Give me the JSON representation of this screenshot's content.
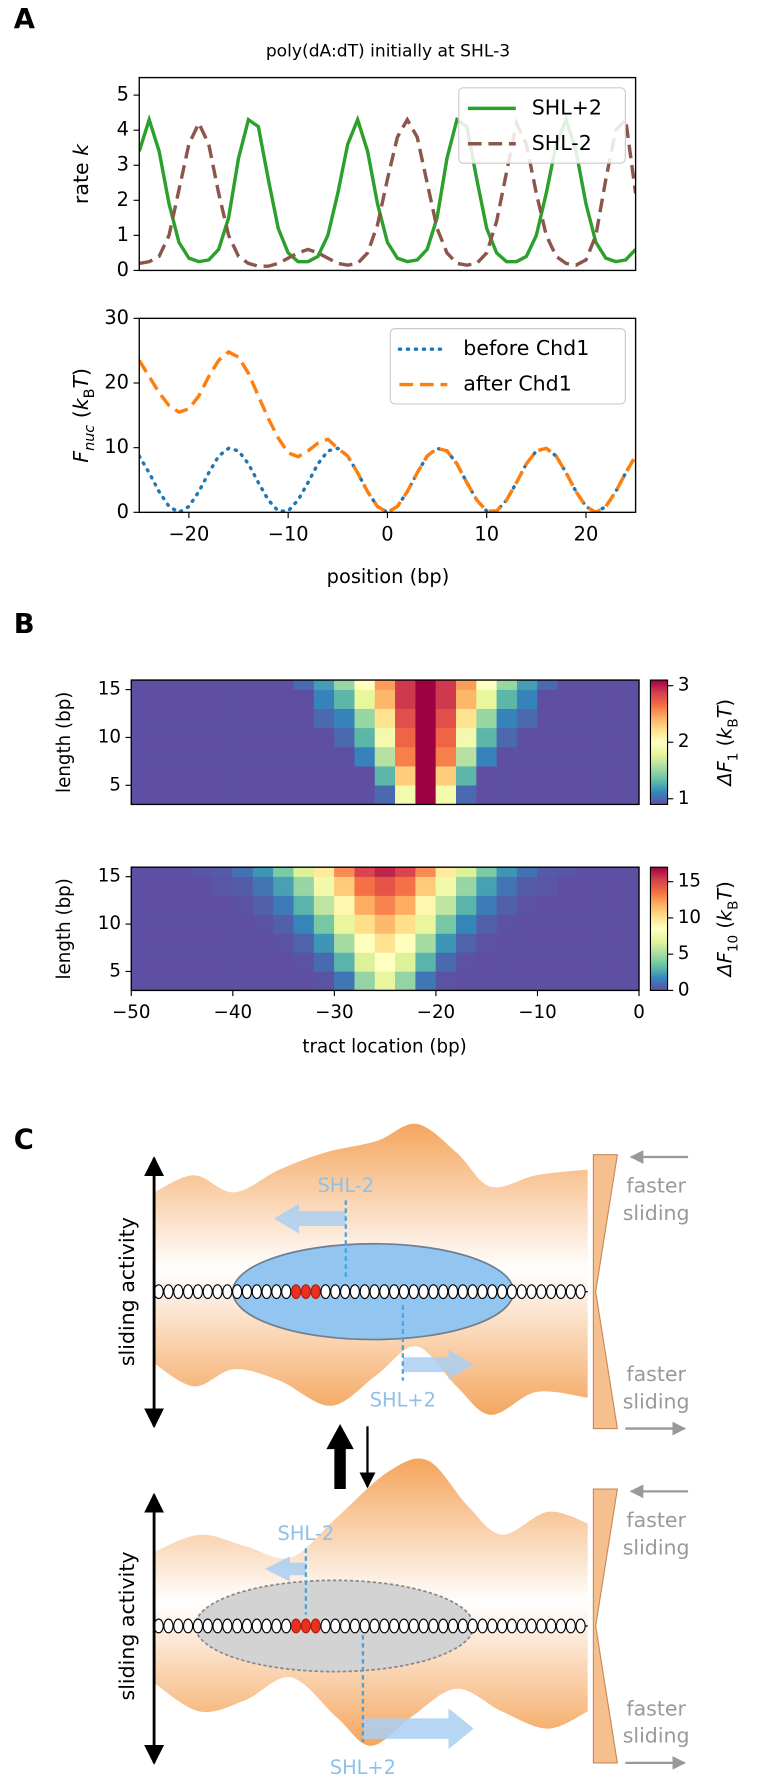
{
  "panels": [
    "A",
    "B",
    "C"
  ],
  "chart_data": [
    {
      "type": "line",
      "title": "poly(dA:dT) initially at SHL-3",
      "ylabel": [
        {
          "text": "rate "
        },
        {
          "text": "k",
          "italic": true
        }
      ],
      "x": [
        -25,
        -24,
        -23,
        -22,
        -21,
        -20,
        -19,
        -18,
        -17,
        -16,
        -15,
        -14,
        -13,
        -12,
        -11,
        -10,
        -9,
        -8,
        -7,
        -6,
        -5,
        -4,
        -3,
        -2,
        -1,
        0,
        1,
        2,
        3,
        4,
        5,
        6,
        7,
        8,
        9,
        10,
        11,
        12,
        13,
        14,
        15,
        16,
        17,
        18,
        19,
        20,
        21,
        22,
        23,
        24,
        25
      ],
      "xlim": [
        -25,
        25
      ],
      "ylim": [
        0,
        5.5
      ],
      "yticks": [
        0,
        1,
        2,
        3,
        4,
        5
      ],
      "legend": "upper right",
      "series": [
        {
          "name": "SHL+2",
          "color": "#2ca02c",
          "linestyle": "solid",
          "values": [
            3.4,
            4.3,
            3.4,
            1.9,
            0.8,
            0.35,
            0.25,
            0.3,
            0.6,
            1.5,
            3.2,
            4.3,
            4.1,
            2.6,
            1.2,
            0.5,
            0.25,
            0.25,
            0.4,
            1.0,
            2.2,
            3.6,
            4.3,
            3.4,
            1.9,
            0.8,
            0.35,
            0.25,
            0.3,
            0.6,
            1.5,
            3.2,
            4.3,
            4.1,
            2.6,
            1.2,
            0.5,
            0.25,
            0.25,
            0.4,
            1.0,
            2.2,
            3.6,
            4.3,
            3.4,
            1.9,
            0.8,
            0.35,
            0.25,
            0.3,
            0.6
          ]
        },
        {
          "name": "SHL-2",
          "color": "#8c564b",
          "linestyle": "dashed",
          "values": [
            0.2,
            0.25,
            0.4,
            1.0,
            2.3,
            3.6,
            4.2,
            3.6,
            2.2,
            1.0,
            0.4,
            0.2,
            0.12,
            0.12,
            0.2,
            0.35,
            0.5,
            0.6,
            0.5,
            0.35,
            0.2,
            0.15,
            0.2,
            0.5,
            1.3,
            2.6,
            3.8,
            4.3,
            3.8,
            2.5,
            1.2,
            0.5,
            0.2,
            0.15,
            0.2,
            0.5,
            1.4,
            2.8,
            4.2,
            3.6,
            2.2,
            1.0,
            0.4,
            0.2,
            0.15,
            0.3,
            1.0,
            2.6,
            4.0,
            4.3,
            2.2
          ]
        }
      ]
    },
    {
      "type": "line",
      "xlabel": "position (bp)",
      "ylabel": [
        {
          "text": "F",
          "italic": true
        },
        {
          "text": "nuc",
          "sub": true,
          "italic": true
        },
        {
          "text": " ("
        },
        {
          "text": "k",
          "italic": true
        },
        {
          "text": "B",
          "sub": true
        },
        {
          "text": "T",
          "italic": true
        },
        {
          "text": ")"
        }
      ],
      "x": [
        -25,
        -24,
        -23,
        -22,
        -21,
        -20,
        -19,
        -18,
        -17,
        -16,
        -15,
        -14,
        -13,
        -12,
        -11,
        -10,
        -9,
        -8,
        -7,
        -6,
        -5,
        -4,
        -3,
        -2,
        -1,
        0,
        1,
        2,
        3,
        4,
        5,
        6,
        7,
        8,
        9,
        10,
        11,
        12,
        13,
        14,
        15,
        16,
        17,
        18,
        19,
        20,
        21,
        22,
        23,
        24,
        25
      ],
      "xlim": [
        -25,
        25
      ],
      "ylim": [
        0,
        30
      ],
      "yticks": [
        0,
        10,
        20,
        30
      ],
      "xticks": [
        {
          "value": -20,
          "label": "−20"
        },
        {
          "value": -10,
          "label": "−10"
        },
        0,
        10,
        20
      ],
      "legend": "upper right",
      "series": [
        {
          "name": "before Chd1",
          "color": "#1f77b4",
          "linestyle": "dotted",
          "values": [
            8.7,
            6.1,
            3.2,
            0.9,
            0,
            0.9,
            3.2,
            6.1,
            8.7,
            9.9,
            9.5,
            7.5,
            4.6,
            1.9,
            0.2,
            0.2,
            1.9,
            4.6,
            7.5,
            9.5,
            9.9,
            8.7,
            6.1,
            3.2,
            0.9,
            0,
            0.9,
            3.2,
            6.1,
            8.7,
            9.9,
            9.5,
            7.5,
            4.6,
            1.9,
            0.2,
            0.2,
            1.9,
            4.6,
            7.5,
            9.5,
            9.9,
            8.7,
            6.1,
            3.2,
            0.9,
            0,
            0.9,
            3.2,
            6.1,
            8.7
          ]
        },
        {
          "name": "after Chd1",
          "color": "#ff7f0e",
          "linestyle": "dashed",
          "values": [
            23.5,
            21,
            18.5,
            16.5,
            15.5,
            16,
            18,
            21,
            23.5,
            24.8,
            24,
            21.5,
            18,
            14.5,
            11.5,
            9.2,
            8.6,
            9.5,
            10.7,
            11.3,
            9.9,
            8.7,
            6.1,
            3.2,
            0.9,
            0,
            0.9,
            3.2,
            6.1,
            8.7,
            9.9,
            9.5,
            7.5,
            4.6,
            1.9,
            0.2,
            0.2,
            1.9,
            4.6,
            7.5,
            9.5,
            9.9,
            8.7,
            6.1,
            3.2,
            0.9,
            0,
            0.9,
            3.2,
            6.1,
            8.7
          ]
        }
      ]
    },
    {
      "type": "heatmap",
      "ylabel": "length (bp)",
      "cbar_label": [
        {
          "text": "ΔF",
          "italic": true
        },
        {
          "text": "1",
          "sub": true
        },
        {
          "text": " ("
        },
        {
          "text": "k",
          "italic": true
        },
        {
          "text": "B",
          "sub": true
        },
        {
          "text": "T",
          "italic": true
        },
        {
          "text": ")"
        }
      ],
      "colors": [
        "#5e4fa2",
        "#3288bd",
        "#66c2a5",
        "#abdda4",
        "#e6f598",
        "#ffffbf",
        "#fee08b",
        "#fdae61",
        "#f46d43",
        "#d53e4f",
        "#9e0142"
      ],
      "clim": [
        0.9,
        3.1
      ],
      "cticks": [
        1,
        2,
        3
      ],
      "xlim": [
        -50,
        0
      ],
      "ylim": [
        3,
        16
      ],
      "yticks": [
        5,
        10,
        15
      ],
      "x": [
        -49,
        -47,
        -45,
        -43,
        -41,
        -39,
        -37,
        -35,
        -33,
        -31,
        -29,
        -27,
        -25,
        -23,
        -21,
        -19,
        -17,
        -15,
        -13,
        -11,
        -9,
        -7,
        -5,
        -3,
        -1
      ],
      "y": [
        4,
        6,
        8,
        10,
        12,
        14,
        16
      ],
      "z": [
        [
          0.9,
          0.9,
          0.9,
          0.9,
          0.9,
          0.9,
          0.9,
          0.9,
          0.9,
          0.9,
          0.9,
          0.9,
          1.0,
          1.9,
          3.1,
          1.9,
          1.0,
          0.9,
          0.9,
          0.9,
          0.9,
          0.9,
          0.9,
          0.9,
          0.9
        ],
        [
          0.9,
          0.9,
          0.9,
          0.9,
          0.9,
          0.9,
          0.9,
          0.9,
          0.9,
          0.9,
          0.9,
          0.9,
          1.3,
          2.3,
          3.1,
          2.3,
          1.3,
          0.9,
          0.9,
          0.9,
          0.9,
          0.9,
          0.9,
          0.9,
          0.9
        ],
        [
          0.9,
          0.9,
          0.9,
          0.9,
          0.9,
          0.9,
          0.9,
          0.9,
          0.9,
          0.9,
          0.9,
          1.1,
          1.6,
          2.6,
          3.1,
          2.6,
          1.6,
          1.1,
          0.9,
          0.9,
          0.9,
          0.9,
          0.9,
          0.9,
          0.9
        ],
        [
          0.9,
          0.9,
          0.9,
          0.9,
          0.9,
          0.9,
          0.9,
          0.9,
          0.9,
          0.9,
          1.0,
          1.3,
          1.9,
          2.7,
          3.1,
          2.7,
          1.9,
          1.3,
          1.0,
          0.9,
          0.9,
          0.9,
          0.9,
          0.9,
          0.9
        ],
        [
          0.9,
          0.9,
          0.9,
          0.9,
          0.9,
          0.9,
          0.9,
          0.9,
          0.9,
          1.0,
          1.1,
          1.5,
          2.2,
          2.8,
          3.1,
          2.8,
          2.2,
          1.5,
          1.1,
          1.0,
          0.9,
          0.9,
          0.9,
          0.9,
          0.9
        ],
        [
          0.9,
          0.9,
          0.9,
          0.9,
          0.9,
          0.9,
          0.9,
          0.9,
          0.9,
          1.1,
          1.3,
          1.8,
          2.4,
          2.9,
          3.1,
          2.9,
          2.4,
          1.8,
          1.3,
          1.1,
          0.9,
          0.9,
          0.9,
          0.9,
          0.9
        ],
        [
          0.9,
          0.9,
          0.9,
          0.9,
          0.9,
          0.9,
          0.9,
          0.9,
          1.0,
          1.2,
          1.5,
          2.0,
          2.5,
          2.9,
          3.1,
          2.9,
          2.5,
          2.0,
          1.5,
          1.2,
          1.0,
          0.9,
          0.9,
          0.9,
          0.9
        ]
      ]
    },
    {
      "type": "heatmap",
      "ylabel": "length (bp)",
      "xlabel": "tract location (bp)",
      "cbar_label": [
        {
          "text": "ΔF",
          "italic": true
        },
        {
          "text": "10",
          "sub": true
        },
        {
          "text": " ("
        },
        {
          "text": "k",
          "italic": true
        },
        {
          "text": "B",
          "sub": true
        },
        {
          "text": "T",
          "italic": true
        },
        {
          "text": ")"
        }
      ],
      "colors": [
        "#5e4fa2",
        "#3288bd",
        "#66c2a5",
        "#abdda4",
        "#e6f598",
        "#ffffbf",
        "#fee08b",
        "#fdae61",
        "#f46d43",
        "#d53e4f",
        "#9e0142"
      ],
      "clim": [
        0,
        17
      ],
      "cticks": [
        0,
        5,
        10,
        15
      ],
      "xlim": [
        -50,
        0
      ],
      "ylim": [
        3,
        16
      ],
      "yticks": [
        5,
        10,
        15
      ],
      "xticks": [
        {
          "value": -50,
          "label": "−50"
        },
        {
          "value": -40,
          "label": "−40"
        },
        {
          "value": -30,
          "label": "−30"
        },
        {
          "value": -20,
          "label": "−20"
        },
        {
          "value": -10,
          "label": "−10"
        },
        0
      ],
      "x": [
        -49,
        -47,
        -45,
        -43,
        -41,
        -39,
        -37,
        -35,
        -33,
        -31,
        -29,
        -27,
        -25,
        -23,
        -21,
        -19,
        -17,
        -15,
        -13,
        -11,
        -9,
        -7,
        -5,
        -3,
        -1
      ],
      "y": [
        4,
        6,
        8,
        10,
        12,
        14,
        16
      ],
      "z": [
        [
          0,
          0,
          0,
          0,
          0,
          0,
          0,
          0,
          0,
          0.1,
          1.2,
          4.5,
          7,
          4.5,
          1.2,
          0.1,
          0,
          0,
          0,
          0,
          0,
          0,
          0,
          0,
          0
        ],
        [
          0,
          0,
          0,
          0,
          0,
          0,
          0,
          0,
          0.1,
          0.8,
          3.0,
          6.5,
          8.5,
          6.5,
          3.0,
          0.8,
          0.1,
          0,
          0,
          0,
          0,
          0,
          0,
          0,
          0
        ],
        [
          0,
          0,
          0,
          0,
          0,
          0,
          0,
          0.1,
          0.6,
          2.1,
          5.0,
          8.4,
          10,
          8.4,
          5.0,
          2.1,
          0.6,
          0.1,
          0,
          0,
          0,
          0,
          0,
          0,
          0
        ],
        [
          0,
          0,
          0,
          0,
          0,
          0,
          0.1,
          0.5,
          1.6,
          3.8,
          7.0,
          10.2,
          11.5,
          10.2,
          7.0,
          3.8,
          1.6,
          0.5,
          0.1,
          0,
          0,
          0,
          0,
          0,
          0
        ],
        [
          0,
          0,
          0,
          0,
          0,
          0.1,
          0.5,
          1.3,
          3.0,
          5.7,
          9.0,
          11.9,
          13,
          11.9,
          9.0,
          5.7,
          3.0,
          1.3,
          0.5,
          0.1,
          0,
          0,
          0,
          0,
          0
        ],
        [
          0,
          0,
          0,
          0,
          0.2,
          0.4,
          1.1,
          2.4,
          4.6,
          7.6,
          10.9,
          13.5,
          14.5,
          13.5,
          10.9,
          7.6,
          4.6,
          2.4,
          1.1,
          0.4,
          0.2,
          0,
          0,
          0,
          0
        ],
        [
          0,
          0,
          0,
          0.2,
          0.4,
          1.0,
          2.1,
          3.9,
          6.5,
          9.6,
          12.8,
          15.1,
          16,
          15.1,
          12.8,
          9.6,
          6.5,
          3.9,
          2.1,
          1.0,
          0.4,
          0.2,
          0,
          0,
          0
        ]
      ]
    }
  ],
  "diagram": {
    "states": [
      {
        "axis_label": "sliding activity",
        "site_left": "SHL-2",
        "site_right": "SHL+2",
        "note_top": [
          "faster",
          "sliding"
        ],
        "note_bottom": [
          "faster",
          "sliding"
        ]
      },
      {
        "axis_label": "sliding activity",
        "site_left": "SHL-2",
        "site_right": "SHL+2",
        "note_top": [
          "faster",
          "sliding"
        ],
        "note_bottom": [
          "faster",
          "sliding"
        ]
      }
    ]
  }
}
